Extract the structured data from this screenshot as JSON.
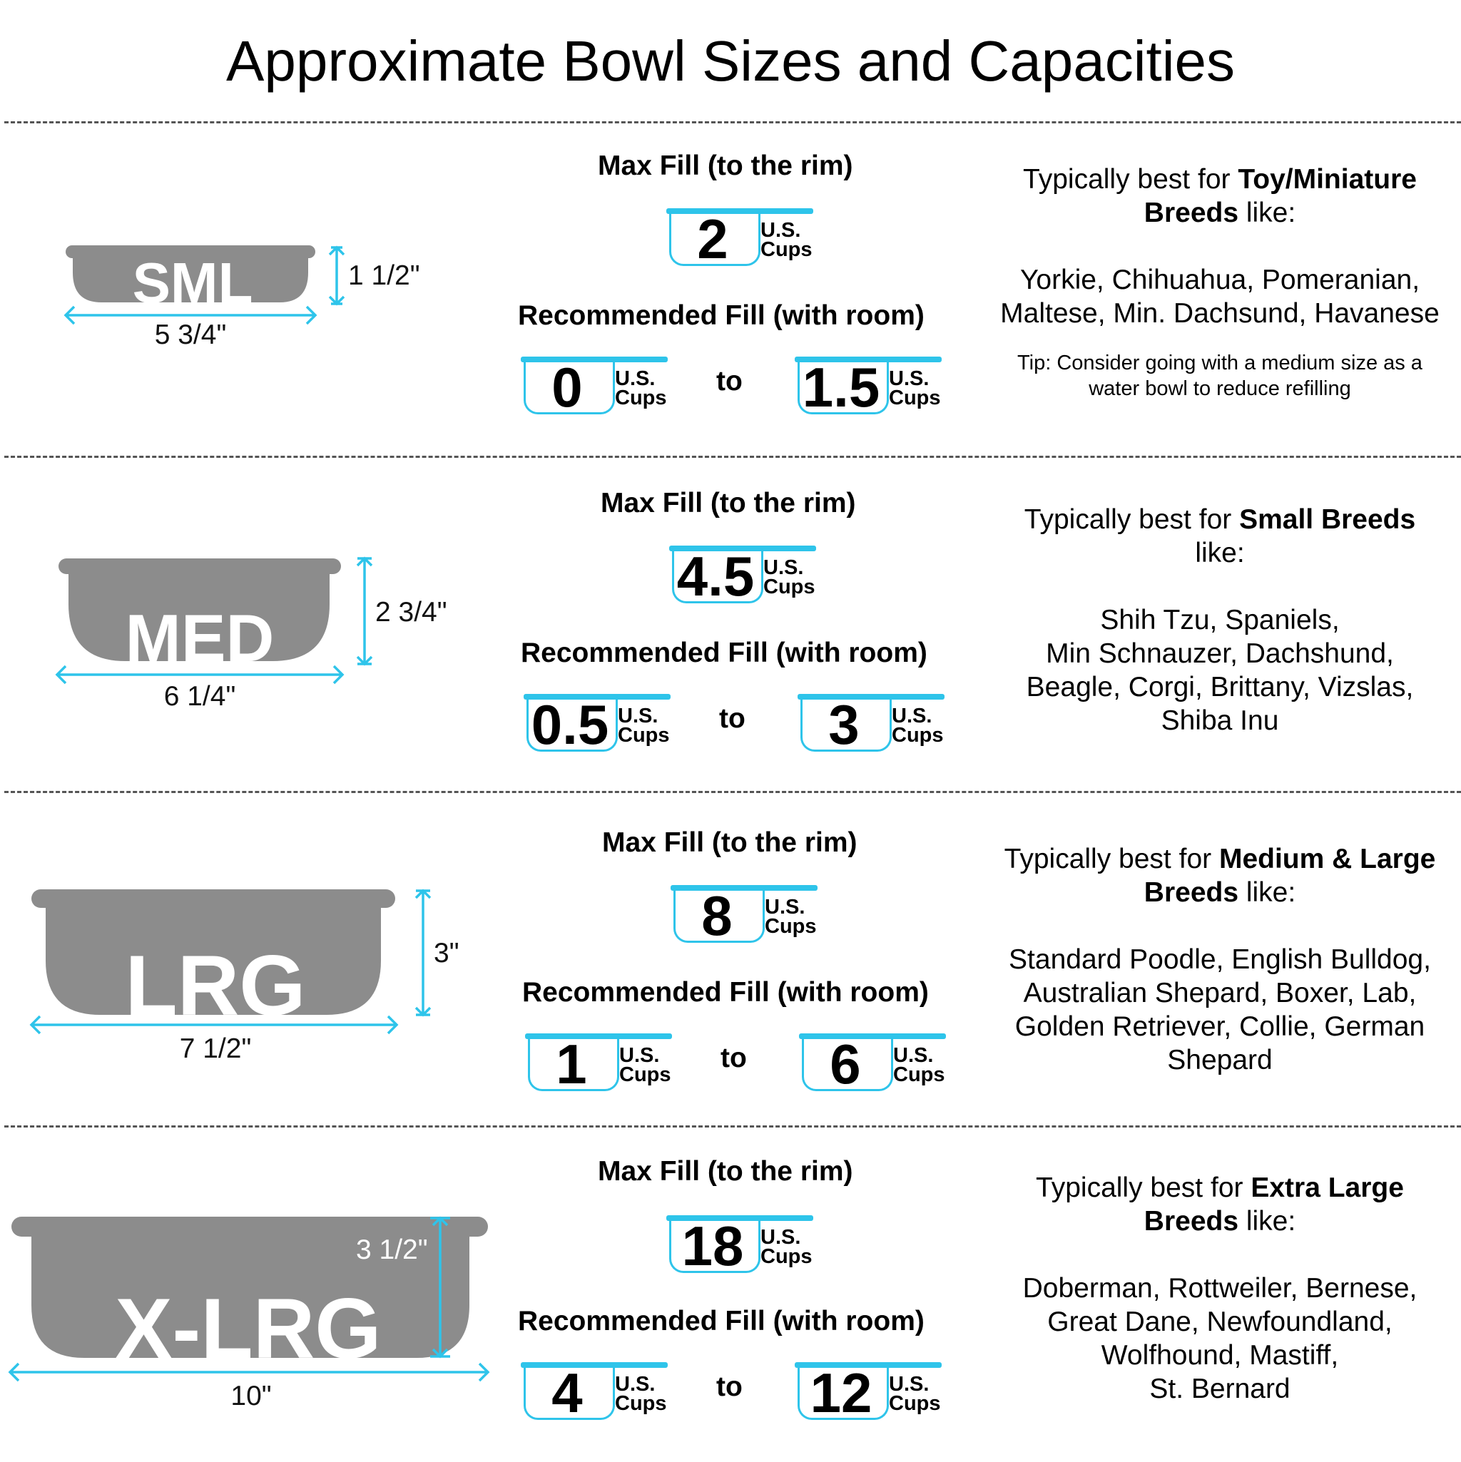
{
  "title": "Approximate Bowl Sizes and Capacities",
  "labels": {
    "max_fill": "Max Fill (to the rim)",
    "recommended_fill": "Recommended Fill (with room)",
    "to": "to",
    "unit_line1": "U.S.",
    "unit_line2": "Cups",
    "typically": "Typically best for ",
    "like": " like:"
  },
  "bowls": [
    {
      "label": "SML",
      "width": "5 3/4\"",
      "height": "1 1/2\"",
      "max_fill": "2",
      "rec_min": "0",
      "rec_max": "1.5",
      "breed_class_a": "Toy/Miniature",
      "breed_class_b": "Breeds",
      "breed_lines": [
        "Yorkie, Chihuahua, Pomeranian,",
        "Maltese, Min. Dachsund, Havanese"
      ],
      "tip_lines": [
        "Tip: Consider going with a medium size as a",
        "water bowl to reduce refilling"
      ]
    },
    {
      "label": "MED",
      "width": "6 1/4\"",
      "height": "2 3/4\"",
      "max_fill": "4.5",
      "rec_min": "0.5",
      "rec_max": "3",
      "breed_class_a": "Small Breeds",
      "breed_class_b": "",
      "breed_lines": [
        "Shih Tzu, Spaniels,",
        "Min Schnauzer, Dachshund,",
        "Beagle, Corgi, Brittany, Vizslas,",
        "Shiba Inu"
      ],
      "tip_lines": []
    },
    {
      "label": "LRG",
      "width": "7 1/2\"",
      "height": "3\"",
      "max_fill": "8",
      "rec_min": "1",
      "rec_max": "6",
      "breed_class_a": "Medium & Large",
      "breed_class_b": "Breeds",
      "breed_lines": [
        "Standard Poodle, English Bulldog,",
        "Australian Shepard, Boxer, Lab,",
        "Golden Retriever, Collie, German",
        "Shepard"
      ],
      "tip_lines": []
    },
    {
      "label": "X-LRG",
      "width": "10\"",
      "height": "3 1/2\"",
      "max_fill": "18",
      "rec_min": "4",
      "rec_max": "12",
      "breed_class_a": "Extra Large",
      "breed_class_b": "Breeds",
      "breed_lines": [
        "Doberman, Rottweiler, Bernese,",
        "Great Dane, Newfoundland,",
        "Wolfhound, Mastiff,",
        "St. Bernard"
      ],
      "tip_lines": []
    }
  ],
  "colors": {
    "accent": "#2ec4ea",
    "bowl": "#8c8c8c",
    "text": "#000000"
  }
}
